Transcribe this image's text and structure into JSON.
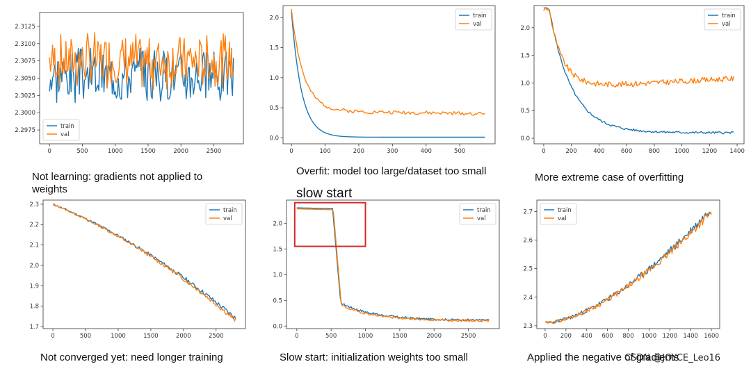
{
  "colors": {
    "train": "#1f77b4",
    "val": "#ff7f0e",
    "box": "#d62728"
  },
  "heading": "slow start",
  "watermark": "CSDN @JOYCE_Leo16",
  "chart_data": [
    {
      "id": "p1",
      "type": "line",
      "caption": "Not learning: gradients not applied to weights",
      "xlim": [
        -150,
        2950
      ],
      "ylim": [
        2.2955,
        2.3145
      ],
      "xticks": [
        0,
        500,
        1000,
        1500,
        2000,
        2500
      ],
      "yticks": [
        2.2975,
        2.3,
        2.3025,
        2.305,
        2.3075,
        2.31,
        2.3125
      ],
      "ytick_labels": [
        "2.2975",
        "2.3000",
        "2.3025",
        "2.3050",
        "2.3075",
        "2.3100",
        "2.3125"
      ],
      "legend": {
        "position": "lower-left",
        "entries": [
          "train",
          "val"
        ]
      },
      "series": [
        {
          "name": "train",
          "shape": "noise",
          "n": 180,
          "x_end": 2800,
          "center": 2.3055,
          "amp": 0.0045,
          "seed": 3
        },
        {
          "name": "val",
          "shape": "noise",
          "n": 180,
          "x_end": 2800,
          "center": 2.3075,
          "amp": 0.0045,
          "seed": 7
        }
      ]
    },
    {
      "id": "p2",
      "type": "line",
      "caption": "Overfit: model too large/dataset too small",
      "xlim": [
        -25,
        605
      ],
      "ylim": [
        -0.1,
        2.2
      ],
      "xticks": [
        0,
        100,
        200,
        300,
        400,
        500
      ],
      "yticks": [
        0.0,
        0.5,
        1.0,
        1.5,
        2.0
      ],
      "ytick_labels": [
        "0.0",
        "0.5",
        "1.0",
        "1.5",
        "2.0"
      ],
      "legend": {
        "position": "upper-right",
        "entries": [
          "train",
          "val"
        ]
      },
      "series": [
        {
          "name": "train",
          "shape": "decay",
          "n": 120,
          "x_end": 575,
          "start": 2.1,
          "floor": 0.01,
          "rate": 30,
          "noise": 0.0,
          "seed": 1
        },
        {
          "name": "val",
          "shape": "decay",
          "n": 120,
          "x_end": 575,
          "start": 2.15,
          "floor": 0.45,
          "rate": 35,
          "noise": 0.03,
          "drift": -0.05,
          "seed": 2
        }
      ]
    },
    {
      "id": "p3",
      "type": "line",
      "caption": "More extreme case of overfitting",
      "xlim": [
        -70,
        1450
      ],
      "ylim": [
        -0.1,
        2.4
      ],
      "xticks": [
        0,
        200,
        400,
        600,
        800,
        1000,
        1200,
        1400
      ],
      "yticks": [
        0.0,
        0.5,
        1.0,
        1.5,
        2.0
      ],
      "ytick_labels": [
        "0.0",
        "0.5",
        "1.0",
        "1.5",
        "2.0"
      ],
      "legend": {
        "position": "upper-right",
        "entries": [
          "train",
          "val"
        ]
      },
      "series": [
        {
          "name": "train",
          "shape": "decay",
          "n": 170,
          "x_end": 1375,
          "start": 2.35,
          "floor": 0.1,
          "rate": 160,
          "noise": 0.02,
          "plateau": 40,
          "seed": 5
        },
        {
          "name": "val",
          "shape": "decay",
          "n": 170,
          "x_end": 1375,
          "start": 2.33,
          "floor": 0.9,
          "rate": 95,
          "noise": 0.05,
          "plateau": 40,
          "rise": 0.18,
          "seed": 9
        }
      ]
    },
    {
      "id": "p4",
      "type": "line",
      "caption": "Not converged yet: need longer training",
      "xlim": [
        -150,
        2950
      ],
      "ylim": [
        1.69,
        2.32
      ],
      "xticks": [
        0,
        500,
        1000,
        1500,
        2000,
        2500
      ],
      "yticks": [
        1.7,
        1.8,
        1.9,
        2.0,
        2.1,
        2.2,
        2.3
      ],
      "ytick_labels": [
        "1.7",
        "1.8",
        "1.9",
        "2.0",
        "2.1",
        "2.2",
        "2.3"
      ],
      "legend": {
        "position": "upper-right",
        "entries": [
          "train",
          "val"
        ]
      },
      "series": [
        {
          "name": "train",
          "shape": "slowdown",
          "n": 160,
          "x_end": 2800,
          "start": 2.3,
          "end": 1.74,
          "curve": 0.35,
          "noise": 0.008,
          "seed": 11
        },
        {
          "name": "val",
          "shape": "slowdown",
          "n": 160,
          "x_end": 2800,
          "start": 2.3,
          "end": 1.73,
          "curve": 0.35,
          "noise": 0.008,
          "seed": 13
        }
      ]
    },
    {
      "id": "p5",
      "type": "line",
      "caption": "Slow start: initialization weights too small",
      "xlim": [
        -150,
        2950
      ],
      "ylim": [
        -0.05,
        2.45
      ],
      "xticks": [
        0,
        500,
        1000,
        1500,
        2000,
        2500
      ],
      "yticks": [
        0.0,
        0.5,
        1.0,
        1.5,
        2.0
      ],
      "ytick_labels": [
        "0.0",
        "0.5",
        "1.0",
        "1.5",
        "2.0"
      ],
      "legend": {
        "position": "upper-right",
        "entries": [
          "train",
          "val"
        ]
      },
      "highlight_box": {
        "x": [
          -30,
          1000
        ],
        "y": [
          1.55,
          2.4
        ]
      },
      "series": [
        {
          "name": "train",
          "shape": "slowstart",
          "n": 200,
          "x_end": 2800,
          "start": 2.3,
          "knee": 580,
          "drop_end": 0.45,
          "floor": 0.11,
          "rate": 500,
          "noise": 0.02,
          "seed": 17
        },
        {
          "name": "val",
          "shape": "slowstart",
          "n": 200,
          "x_end": 2800,
          "start": 2.28,
          "knee": 590,
          "drop_end": 0.4,
          "floor": 0.1,
          "rate": 500,
          "noise": 0.02,
          "seed": 19
        }
      ]
    },
    {
      "id": "p6",
      "type": "line",
      "caption": "Applied the negative of gradients",
      "xlim": [
        -80,
        1680
      ],
      "ylim": [
        2.29,
        2.74
      ],
      "xticks": [
        0,
        200,
        400,
        600,
        800,
        1000,
        1200,
        1400,
        1600
      ],
      "yticks": [
        2.3,
        2.4,
        2.5,
        2.6,
        2.7
      ],
      "ytick_labels": [
        "2.3",
        "2.4",
        "2.5",
        "2.6",
        "2.7"
      ],
      "legend": {
        "position": "upper-left",
        "entries": [
          "train",
          "val"
        ]
      },
      "series": [
        {
          "name": "train",
          "shape": "rise",
          "n": 170,
          "x_end": 1600,
          "start": 2.31,
          "end": 2.71,
          "power": 1.6,
          "noise": 0.01,
          "seed": 23
        },
        {
          "name": "val",
          "shape": "rise",
          "n": 170,
          "x_end": 1600,
          "start": 2.31,
          "end": 2.7,
          "power": 1.6,
          "noise": 0.01,
          "seed": 29
        }
      ]
    }
  ]
}
